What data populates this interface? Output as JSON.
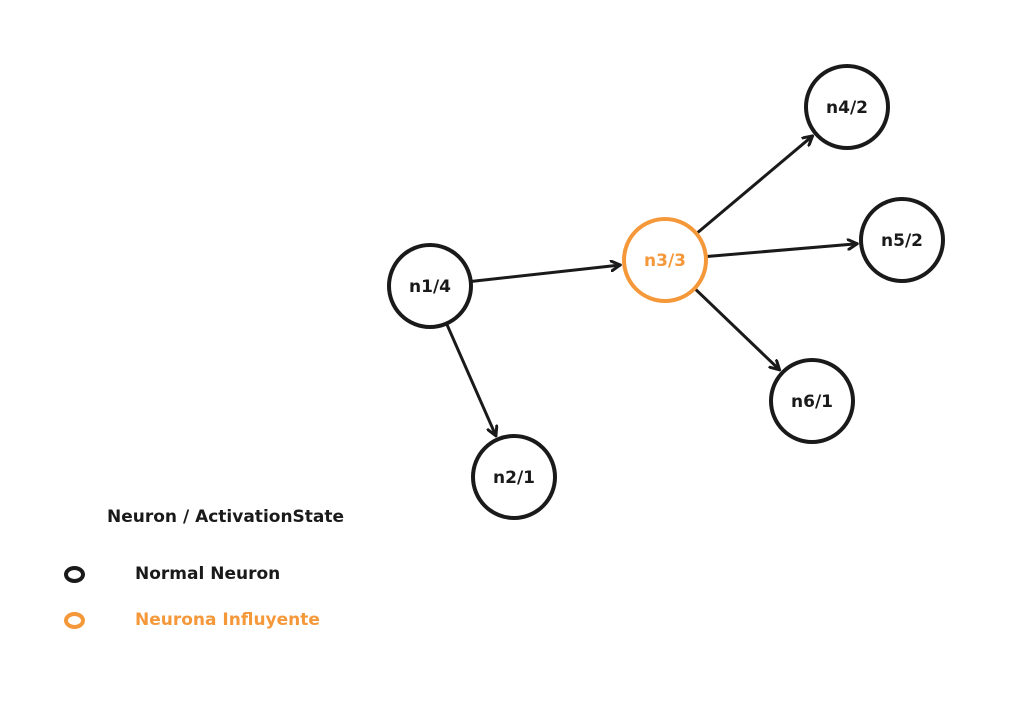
{
  "colors": {
    "normal": "#1a1a1a",
    "influential": "#f5983a"
  },
  "nodes": [
    {
      "id": "n1",
      "label": "n1/4",
      "type": "normal"
    },
    {
      "id": "n2",
      "label": "n2/1",
      "type": "normal"
    },
    {
      "id": "n3",
      "label": "n3/3",
      "type": "influential"
    },
    {
      "id": "n4",
      "label": "n4/2",
      "type": "normal"
    },
    {
      "id": "n5",
      "label": "n5/2",
      "type": "normal"
    },
    {
      "id": "n6",
      "label": "n6/1",
      "type": "normal"
    }
  ],
  "edges": [
    {
      "from": "n1",
      "to": "n3"
    },
    {
      "from": "n1",
      "to": "n2"
    },
    {
      "from": "n3",
      "to": "n4"
    },
    {
      "from": "n3",
      "to": "n5"
    },
    {
      "from": "n3",
      "to": "n6"
    }
  ],
  "legend": {
    "title": "Neuron / ActivationState",
    "items": [
      {
        "label": "Normal Neuron",
        "type": "normal"
      },
      {
        "label": "Neurona Influyente",
        "type": "influential"
      }
    ]
  }
}
